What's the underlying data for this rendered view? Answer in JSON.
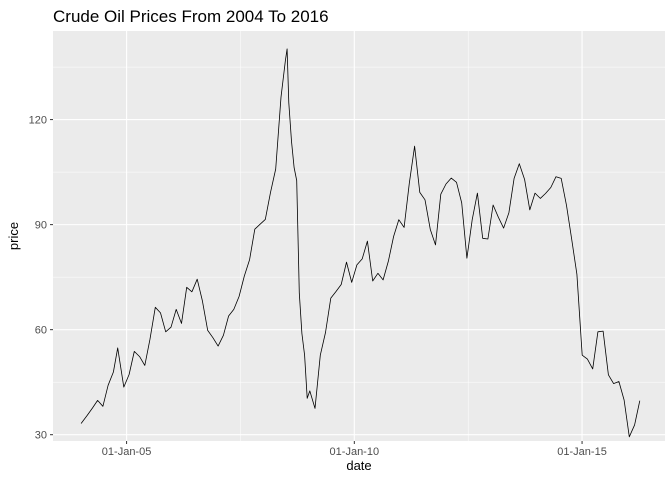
{
  "chart_data": {
    "type": "line",
    "title": "Crude Oil Prices From 2004 To 2016",
    "xlabel": "date",
    "ylabel": "price",
    "xlim": [
      "2003-05-22",
      "2016-10-27"
    ],
    "ylim": [
      28.2,
      145.3
    ],
    "x_ticks": [
      {
        "date": "2005-01-01",
        "label": "01-Jan-05"
      },
      {
        "date": "2010-01-01",
        "label": "01-Jan-10"
      },
      {
        "date": "2015-01-01",
        "label": "01-Jan-15"
      }
    ],
    "y_ticks": [
      30,
      60,
      90,
      120
    ],
    "grid": true,
    "colors": {
      "panel": "#ebebeb",
      "grid": "#ffffff",
      "line": "#000000"
    },
    "series": [
      {
        "x": [
          "2004-01-02",
          "2004-02-20",
          "2004-04-02",
          "2004-05-14",
          "2004-06-25",
          "2004-08-06",
          "2004-09-17",
          "2004-10-22",
          "2004-12-10",
          "2005-01-21",
          "2005-03-04",
          "2005-04-15",
          "2005-05-27",
          "2005-07-08",
          "2005-08-19",
          "2005-09-30",
          "2005-11-11",
          "2005-12-23",
          "2006-02-03",
          "2006-03-17",
          "2006-04-28",
          "2006-06-09",
          "2006-07-21",
          "2006-09-01",
          "2006-10-13",
          "2006-11-24",
          "2007-01-05",
          "2007-02-16",
          "2007-03-30",
          "2007-05-11",
          "2007-06-22",
          "2007-08-03",
          "2007-09-14",
          "2007-10-26",
          "2007-12-07",
          "2008-01-18",
          "2008-02-29",
          "2008-04-11",
          "2008-05-23",
          "2008-06-27",
          "2008-07-11",
          "2008-07-25",
          "2008-08-15",
          "2008-09-05",
          "2008-09-26",
          "2008-10-17",
          "2008-11-07",
          "2008-11-28",
          "2008-12-19",
          "2009-01-09",
          "2009-02-20",
          "2009-04-03",
          "2009-05-15",
          "2009-06-26",
          "2009-08-07",
          "2009-09-18",
          "2009-10-30",
          "2009-12-11",
          "2010-01-22",
          "2010-03-05",
          "2010-04-16",
          "2010-05-28",
          "2010-07-09",
          "2010-08-20",
          "2010-10-01",
          "2010-11-12",
          "2010-12-24",
          "2011-02-04",
          "2011-03-18",
          "2011-04-29",
          "2011-06-10",
          "2011-07-22",
          "2011-09-02",
          "2011-10-14",
          "2011-11-25",
          "2012-01-06",
          "2012-02-17",
          "2012-03-30",
          "2012-05-11",
          "2012-06-22",
          "2012-08-03",
          "2012-09-14",
          "2012-10-26",
          "2012-12-07",
          "2013-01-18",
          "2013-03-01",
          "2013-04-12",
          "2013-05-24",
          "2013-07-05",
          "2013-08-16",
          "2013-09-27",
          "2013-11-08",
          "2013-12-20",
          "2014-01-31",
          "2014-03-14",
          "2014-04-25",
          "2014-06-06",
          "2014-07-18",
          "2014-08-29",
          "2014-10-10",
          "2014-11-21",
          "2015-01-02",
          "2015-02-13",
          "2015-03-27",
          "2015-05-08",
          "2015-06-19",
          "2015-07-31",
          "2015-09-11",
          "2015-10-23",
          "2015-12-04",
          "2016-01-15",
          "2016-02-26",
          "2016-04-08"
        ],
        "values": [
          33.2,
          35.5,
          37.6,
          39.8,
          38.1,
          44.1,
          47.9,
          54.8,
          43.6,
          47.2,
          53.8,
          52.3,
          49.8,
          57.3,
          66.4,
          64.8,
          59.4,
          60.7,
          65.8,
          61.8,
          72.1,
          70.8,
          74.4,
          68.2,
          59.8,
          57.7,
          55.3,
          58.4,
          63.9,
          65.8,
          69.5,
          75.3,
          80.0,
          88.7,
          90.1,
          91.5,
          99.2,
          105.9,
          126.4,
          136.9,
          140.2,
          124.8,
          113.8,
          106.3,
          102.6,
          70.4,
          58.9,
          52.7,
          40.4,
          42.5,
          37.5,
          52.7,
          59.2,
          69.0,
          70.9,
          72.9,
          79.3,
          73.5,
          78.5,
          80.2,
          85.3,
          73.9,
          76.1,
          74.2,
          79.6,
          86.6,
          91.4,
          89.2,
          101.8,
          112.4,
          99.2,
          97.1,
          88.6,
          84.2,
          98.7,
          101.6,
          103.3,
          102.1,
          96.2,
          80.4,
          91.4,
          99.0,
          86.1,
          85.9,
          95.6,
          92.1,
          89.0,
          93.4,
          103.2,
          107.4,
          102.9,
          94.2,
          99.0,
          97.5,
          98.9,
          100.6,
          103.7,
          103.2,
          95.5,
          85.8,
          75.8,
          52.7,
          51.6,
          48.8,
          59.4,
          59.6,
          47.1,
          44.6,
          45.2,
          39.9,
          29.4,
          32.8,
          39.7
        ]
      }
    ]
  }
}
